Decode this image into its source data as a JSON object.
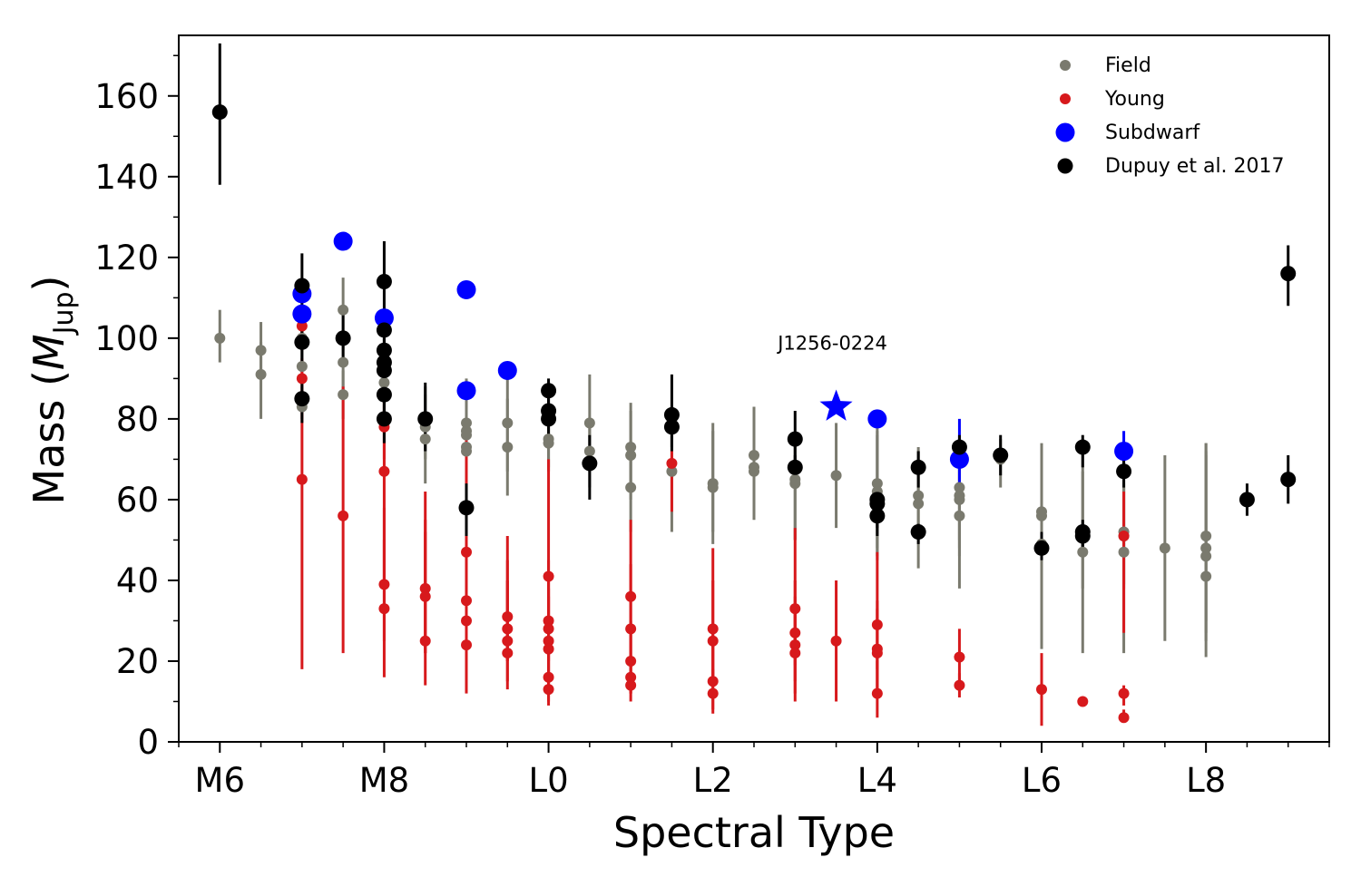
{
  "chart_data": {
    "type": "scatter",
    "title": "",
    "xlabel": "Spectral Type",
    "ylabel": {
      "main": "Mass (",
      "italic": "M",
      "sub": "Jup",
      "close": ")"
    },
    "xlim": [
      5.5,
      19.5
    ],
    "ylim": [
      0,
      175
    ],
    "x_ticks": [
      {
        "value": 6,
        "label": "M6"
      },
      {
        "value": 8,
        "label": "M8"
      },
      {
        "value": 10,
        "label": "L0"
      },
      {
        "value": 12,
        "label": "L2"
      },
      {
        "value": 14,
        "label": "L4"
      },
      {
        "value": 16,
        "label": "L6"
      },
      {
        "value": 18,
        "label": "L8"
      }
    ],
    "y_ticks": [
      0,
      20,
      40,
      60,
      80,
      100,
      120,
      140,
      160
    ],
    "legend_position": "top-right",
    "series": [
      {
        "name": "Field",
        "color": "#7a7a6e",
        "marker": "small-circle",
        "points": [
          [
            6,
            100,
            94,
            107
          ],
          [
            6.5,
            97,
            90,
            104
          ],
          [
            6.5,
            91,
            80,
            99
          ],
          [
            7,
            100,
            92,
            108
          ],
          [
            7,
            93,
            85,
            100
          ],
          [
            7,
            83,
            80,
            88
          ],
          [
            7.5,
            107,
            97,
            115
          ],
          [
            7.5,
            94,
            85,
            102
          ],
          [
            7.5,
            86,
            80,
            92
          ],
          [
            8,
            97,
            89,
            103
          ],
          [
            8,
            89,
            82,
            96
          ],
          [
            8,
            86,
            80,
            92
          ],
          [
            8.5,
            78,
            70,
            88
          ],
          [
            8.5,
            75,
            64,
            86
          ],
          [
            9,
            79,
            67,
            90
          ],
          [
            9,
            77,
            66,
            88
          ],
          [
            9,
            76,
            65,
            87
          ],
          [
            9,
            73,
            63,
            83
          ],
          [
            9,
            72,
            62,
            82
          ],
          [
            9.5,
            79,
            67,
            91
          ],
          [
            9.5,
            73,
            61,
            85
          ],
          [
            10,
            75,
            68,
            82
          ],
          [
            10,
            74,
            67,
            81
          ],
          [
            10.5,
            79,
            67,
            91
          ],
          [
            10.5,
            72,
            63,
            80
          ],
          [
            11,
            73,
            62,
            84
          ],
          [
            11,
            71,
            60,
            82
          ],
          [
            11,
            63,
            52,
            73
          ],
          [
            11.5,
            67,
            52,
            77
          ],
          [
            12,
            64,
            52,
            79
          ],
          [
            12,
            63,
            49,
            77
          ],
          [
            12.5,
            71,
            59,
            83
          ],
          [
            12.5,
            68,
            55,
            80
          ],
          [
            12.5,
            67,
            55,
            79
          ],
          [
            13,
            65,
            50,
            76
          ],
          [
            13,
            64,
            50,
            76
          ],
          [
            13.5,
            66,
            53,
            79
          ],
          [
            14,
            64,
            48,
            79
          ],
          [
            14,
            62,
            46,
            77
          ],
          [
            14,
            60,
            45,
            76
          ],
          [
            14.5,
            61,
            50,
            73
          ],
          [
            14.5,
            59,
            43,
            72
          ],
          [
            15,
            63,
            50,
            75
          ],
          [
            15,
            61,
            48,
            73
          ],
          [
            15,
            60,
            46,
            72
          ],
          [
            15,
            56,
            38,
            70
          ],
          [
            15.5,
            70,
            63,
            75
          ],
          [
            16,
            57,
            30,
            74
          ],
          [
            16,
            56,
            28,
            73
          ],
          [
            16,
            49,
            23,
            73
          ],
          [
            16.5,
            52,
            38,
            67
          ],
          [
            16.5,
            47,
            22,
            72
          ],
          [
            17,
            52,
            39,
            64
          ],
          [
            17,
            51,
            38,
            63
          ],
          [
            17,
            47,
            22,
            69
          ],
          [
            17.5,
            48,
            25,
            71
          ],
          [
            18,
            51,
            30,
            74
          ],
          [
            18,
            48,
            27,
            72
          ],
          [
            18,
            46,
            25,
            71
          ],
          [
            18,
            41,
            21,
            74
          ]
        ]
      },
      {
        "name": "Young",
        "color": "#d7191c",
        "marker": "small-circle",
        "points": [
          [
            7,
            103,
            97,
            108
          ],
          [
            7,
            90,
            83,
            95
          ],
          [
            7,
            65,
            18,
            87
          ],
          [
            7.5,
            56,
            22,
            88
          ],
          [
            8,
            78,
            70,
            85
          ],
          [
            8,
            67,
            40,
            80
          ],
          [
            8,
            39,
            25,
            58
          ],
          [
            8,
            33,
            16,
            50
          ],
          [
            8.5,
            38,
            22,
            55
          ],
          [
            8.5,
            36,
            22,
            52
          ],
          [
            8.5,
            25,
            14,
            62
          ],
          [
            9,
            47,
            30,
            78
          ],
          [
            9,
            35,
            20,
            50
          ],
          [
            9,
            30,
            20,
            45
          ],
          [
            9,
            24,
            12,
            38
          ],
          [
            9.5,
            31,
            20,
            45
          ],
          [
            9.5,
            28,
            20,
            40
          ],
          [
            9.5,
            25,
            15,
            51
          ],
          [
            9.5,
            22,
            13,
            40
          ],
          [
            10,
            41,
            28,
            70
          ],
          [
            10,
            30,
            20,
            45
          ],
          [
            10,
            28,
            20,
            40
          ],
          [
            10,
            25,
            15,
            38
          ],
          [
            10,
            23,
            14,
            36
          ],
          [
            10,
            16,
            10,
            25
          ],
          [
            10,
            13,
            9,
            20
          ],
          [
            11,
            36,
            22,
            55
          ],
          [
            11,
            28,
            17,
            44
          ],
          [
            11,
            20,
            12,
            30
          ],
          [
            11,
            16,
            12,
            22
          ],
          [
            11,
            14,
            10,
            20
          ],
          [
            11.5,
            69,
            57,
            72
          ],
          [
            12,
            28,
            15,
            48
          ],
          [
            12,
            25,
            15,
            40
          ],
          [
            12,
            15,
            8,
            24
          ],
          [
            12,
            12,
            7,
            18
          ],
          [
            13,
            33,
            19,
            53
          ],
          [
            13,
            27,
            15,
            40
          ],
          [
            13,
            24,
            12,
            36
          ],
          [
            13,
            22,
            10,
            32
          ],
          [
            13.5,
            25,
            10,
            40
          ],
          [
            14,
            29,
            18,
            47
          ],
          [
            14,
            23,
            13,
            35
          ],
          [
            14,
            22,
            12,
            33
          ],
          [
            14,
            12,
            6,
            20
          ],
          [
            15,
            21,
            14,
            28
          ],
          [
            15,
            14,
            11,
            17
          ],
          [
            16,
            13,
            4,
            22
          ],
          [
            16.5,
            10,
            9,
            11
          ],
          [
            17,
            51,
            27,
            62
          ],
          [
            17,
            12,
            9,
            14
          ],
          [
            17,
            6,
            5,
            8
          ]
        ]
      },
      {
        "name": "Subdwarf",
        "color": "#0000ff",
        "marker": "large-circle",
        "points": [
          [
            7,
            111,
            111,
            111
          ],
          [
            7,
            106,
            106,
            106
          ],
          [
            7.5,
            124,
            124,
            124
          ],
          [
            8,
            105,
            105,
            105
          ],
          [
            9,
            112,
            112,
            112
          ],
          [
            9,
            87,
            87,
            87
          ],
          [
            9.5,
            92,
            92,
            92
          ],
          [
            14,
            80,
            80,
            80
          ],
          [
            15,
            70,
            62,
            80
          ],
          [
            17,
            72,
            68,
            77
          ]
        ]
      },
      {
        "name": "Dupuy et al. 2017",
        "color": "#000000",
        "marker": "medium-circle",
        "points": [
          [
            6,
            156,
            138,
            173
          ],
          [
            7,
            113,
            101,
            121
          ],
          [
            7,
            99,
            93,
            104
          ],
          [
            7,
            85,
            79,
            89
          ],
          [
            7.5,
            100,
            95,
            106
          ],
          [
            8,
            114,
            104,
            124
          ],
          [
            8,
            102,
            99,
            104
          ],
          [
            8,
            97,
            93,
            100
          ],
          [
            8,
            94,
            88,
            99
          ],
          [
            8,
            92,
            86,
            97
          ],
          [
            8,
            86,
            81,
            91
          ],
          [
            8,
            80,
            74,
            86
          ],
          [
            8.5,
            80,
            72,
            89
          ],
          [
            9,
            58,
            51,
            64
          ],
          [
            10,
            87,
            84,
            90
          ],
          [
            10,
            82,
            79,
            86
          ],
          [
            10,
            80,
            76,
            84
          ],
          [
            10.5,
            69,
            60,
            76
          ],
          [
            11.5,
            81,
            73,
            91
          ],
          [
            11.5,
            78,
            72,
            83
          ],
          [
            13,
            75,
            68,
            82
          ],
          [
            13,
            68,
            65,
            71
          ],
          [
            14,
            60,
            56,
            64
          ],
          [
            14,
            59,
            53,
            65
          ],
          [
            14,
            56,
            51,
            60
          ],
          [
            14.5,
            68,
            63,
            72
          ],
          [
            14.5,
            52,
            49,
            54
          ],
          [
            15,
            73,
            68,
            76
          ],
          [
            15.5,
            71,
            66,
            76
          ],
          [
            16,
            48,
            45,
            52
          ],
          [
            16.5,
            73,
            68,
            76
          ],
          [
            16.5,
            52,
            48,
            55
          ],
          [
            16.5,
            51,
            47,
            54
          ],
          [
            17,
            67,
            63,
            70
          ],
          [
            18.5,
            60,
            56,
            64
          ],
          [
            19,
            116,
            108,
            123
          ],
          [
            19,
            65,
            59,
            71
          ]
        ]
      }
    ],
    "highlight": {
      "label": "J1256-0224",
      "x": 13.5,
      "y": 83,
      "marker": "star",
      "color": "#0000ff"
    }
  }
}
